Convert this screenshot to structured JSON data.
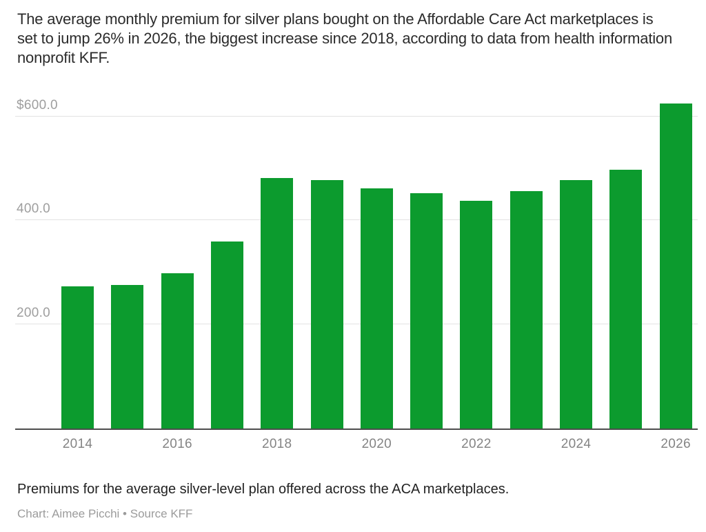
{
  "chart_data": {
    "type": "bar",
    "title": "The average monthly premium for silver plans bought on the Affordable Care Act marketplaces is set to jump 26% in 2026, the biggest increase since 2018, according to data from health information nonprofit KFF.",
    "categories": [
      "2014",
      "2015",
      "2016",
      "2017",
      "2018",
      "2019",
      "2020",
      "2021",
      "2022",
      "2023",
      "2024",
      "2025",
      "2026"
    ],
    "values": [
      273,
      276,
      299,
      359,
      481,
      478,
      462,
      452,
      438,
      456,
      477,
      497,
      625
    ],
    "xlabel": "",
    "ylabel": "",
    "ylim": [
      0,
      638
    ],
    "grid": true,
    "legend": "none",
    "y_ticks": [
      {
        "value": 200,
        "label": "200.0"
      },
      {
        "value": 400,
        "label": "400.0"
      },
      {
        "value": 600,
        "label": "$600.0"
      }
    ],
    "x_ticks": [
      {
        "index": 0,
        "label": "2014"
      },
      {
        "index": 2,
        "label": "2016"
      },
      {
        "index": 4,
        "label": "2018"
      },
      {
        "index": 6,
        "label": "2020"
      },
      {
        "index": 8,
        "label": "2022"
      },
      {
        "index": 10,
        "label": "2024"
      },
      {
        "index": 12,
        "label": "2026"
      }
    ],
    "colors": {
      "bar": "#0c9b2e",
      "gridline": "#e2e2e2",
      "axis_line": "#4d4d4d",
      "y_tick_text": "#9e9e9e",
      "x_tick_text": "#848484"
    }
  },
  "footer": {
    "note": "Premiums for the average silver-level plan offered across the ACA marketplaces.",
    "credit": "Chart: Aimee Picchi • Source KFF"
  }
}
